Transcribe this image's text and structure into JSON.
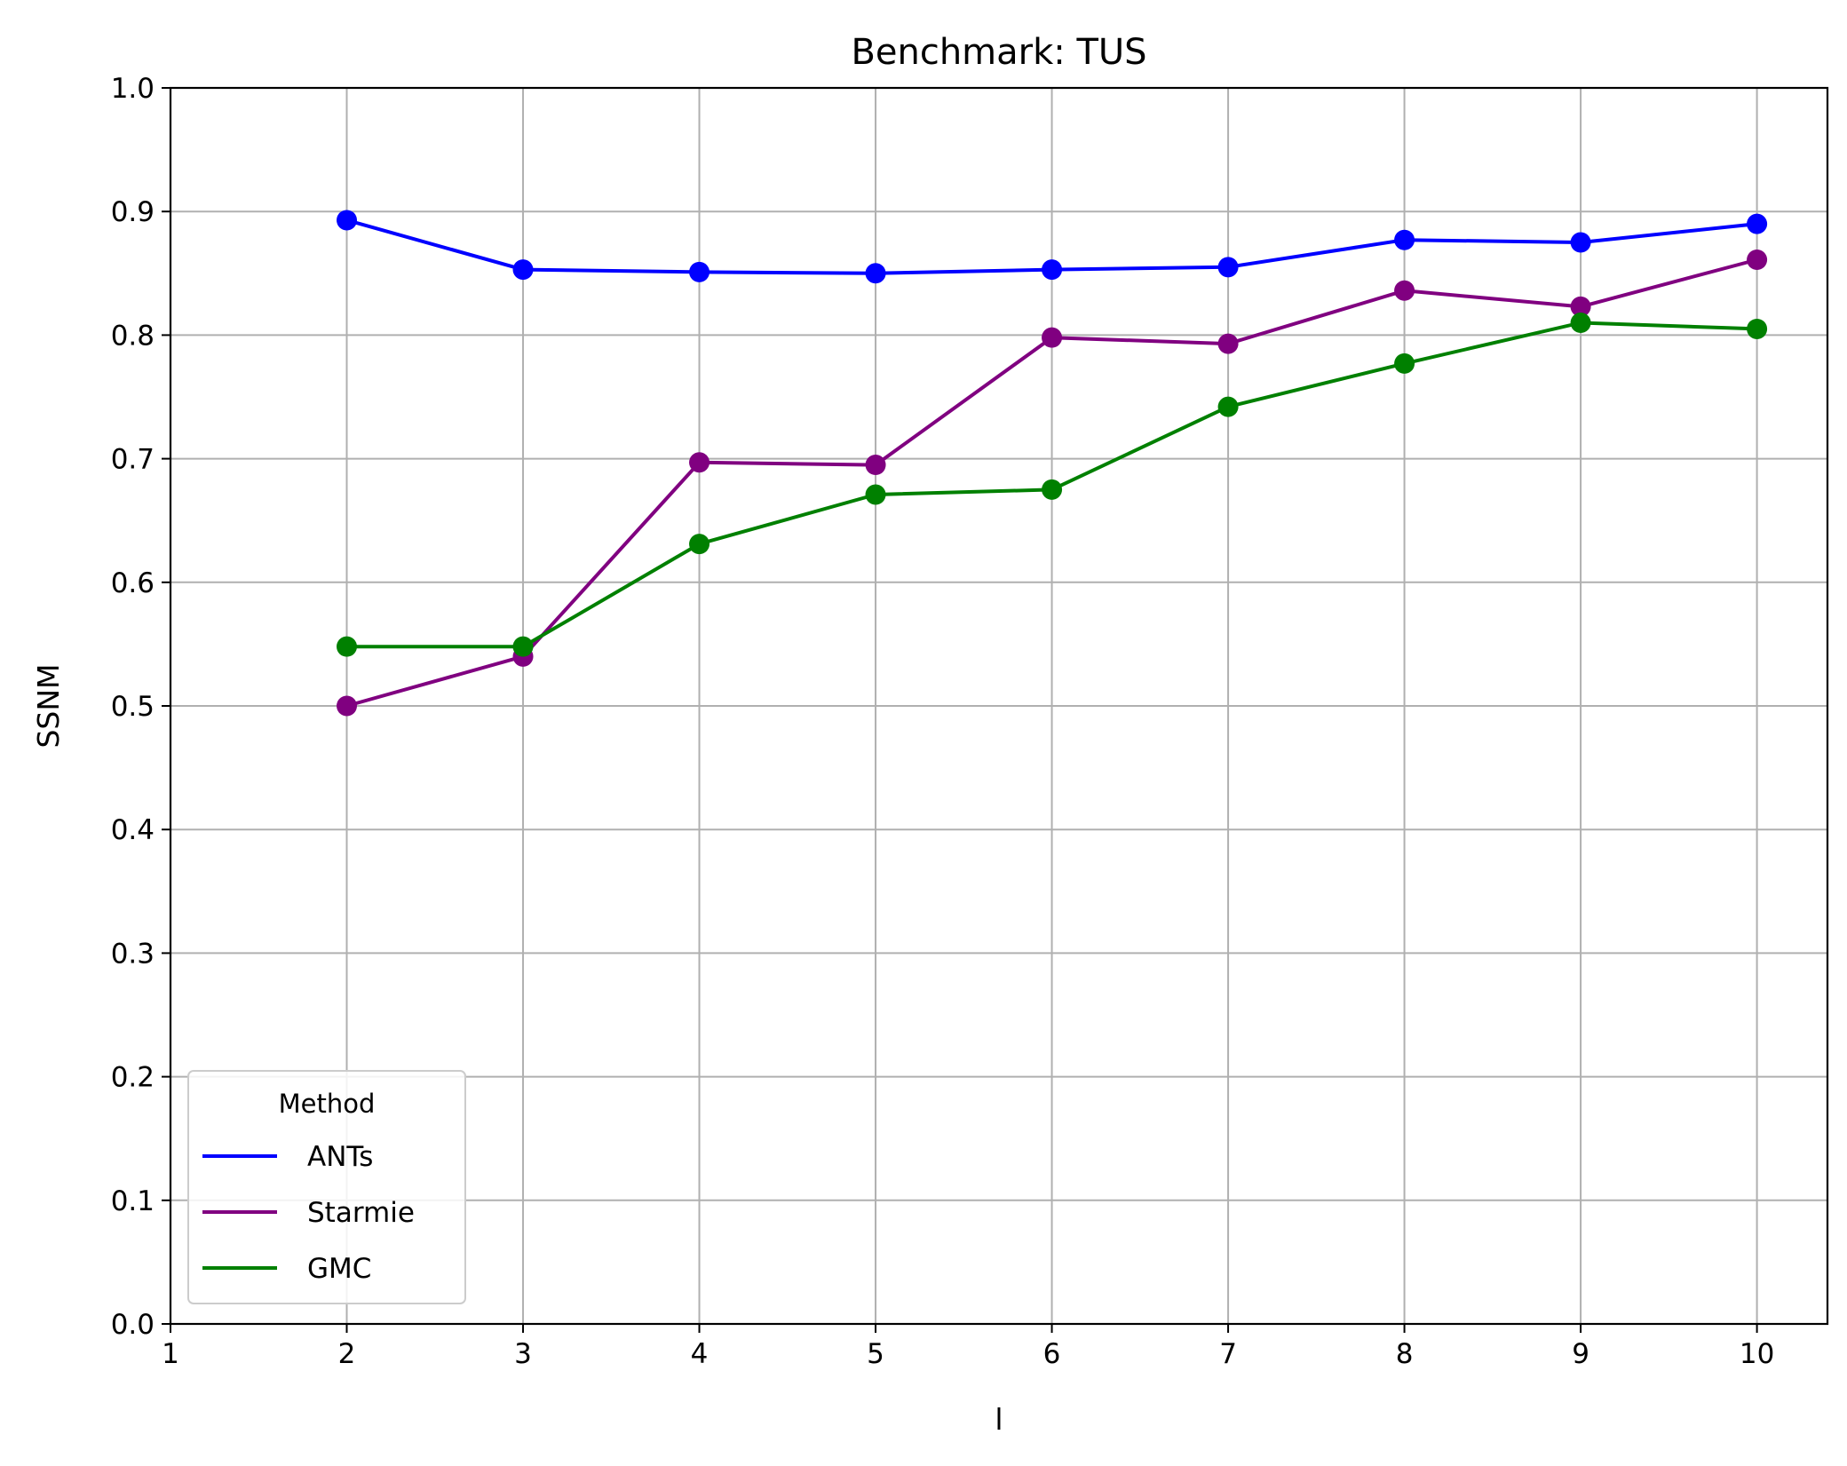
{
  "chart_data": {
    "type": "line",
    "title": "Benchmark: TUS",
    "xlabel": "l",
    "ylabel": "SSNM",
    "xlim": [
      1,
      10.4
    ],
    "ylim": [
      0.0,
      1.0
    ],
    "xticks": [
      "1",
      "2",
      "3",
      "4",
      "5",
      "6",
      "7",
      "8",
      "9",
      "10"
    ],
    "yticks": [
      "0.0",
      "0.1",
      "0.2",
      "0.3",
      "0.4",
      "0.5",
      "0.6",
      "0.7",
      "0.8",
      "0.9",
      "1.0"
    ],
    "grid": true,
    "legend": {
      "title": "Method",
      "position": "lower-left"
    },
    "x": [
      2,
      3,
      4,
      5,
      6,
      7,
      8,
      9,
      10
    ],
    "series": [
      {
        "name": "ANTs",
        "color": "#0000ff",
        "values": [
          0.893,
          0.853,
          0.851,
          0.85,
          0.853,
          0.855,
          0.877,
          0.875,
          0.89
        ]
      },
      {
        "name": "Starmie",
        "color": "#800080",
        "values": [
          0.5,
          0.54,
          0.697,
          0.695,
          0.798,
          0.793,
          0.836,
          0.823,
          0.861
        ]
      },
      {
        "name": "GMC",
        "color": "#008000",
        "values": [
          0.548,
          0.548,
          0.631,
          0.671,
          0.675,
          0.742,
          0.777,
          0.81,
          0.805
        ]
      }
    ]
  }
}
